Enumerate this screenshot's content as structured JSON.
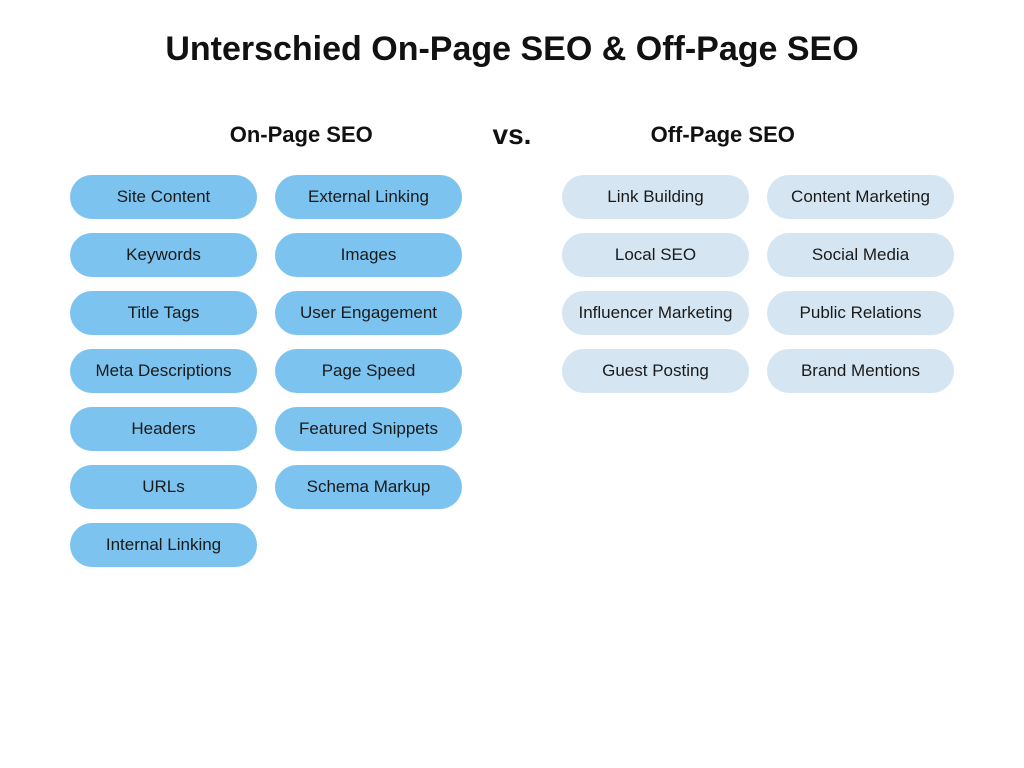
{
  "type": "infographic",
  "title": "Unterschied On-Page SEO & Off-Page SEO",
  "vs_label": "vs.",
  "background_color": "#ffffff",
  "text_color": "#1a1a1a",
  "title_fontsize": 34,
  "col_title_fontsize": 22,
  "pill_fontsize": 17,
  "pill_border_radius": 999,
  "left": {
    "title": "On-Page SEO",
    "pill_color": "#7cc3ef",
    "col1": [
      "Site Content",
      "Keywords",
      "Title Tags",
      "Meta Descriptions",
      "Headers",
      "URLs",
      "Internal Linking"
    ],
    "col2": [
      "External Linking",
      "Images",
      "User Engagement",
      "Page Speed",
      "Featured Snippets",
      "Schema Markup"
    ]
  },
  "right": {
    "title": "Off-Page SEO",
    "pill_color": "#d5e5f2",
    "col1": [
      "Link Building",
      "Local SEO",
      "Influencer Marketing",
      "Guest Posting"
    ],
    "col2": [
      "Content Marketing",
      "Social Media",
      "Public Relations",
      "Brand Mentions"
    ]
  }
}
